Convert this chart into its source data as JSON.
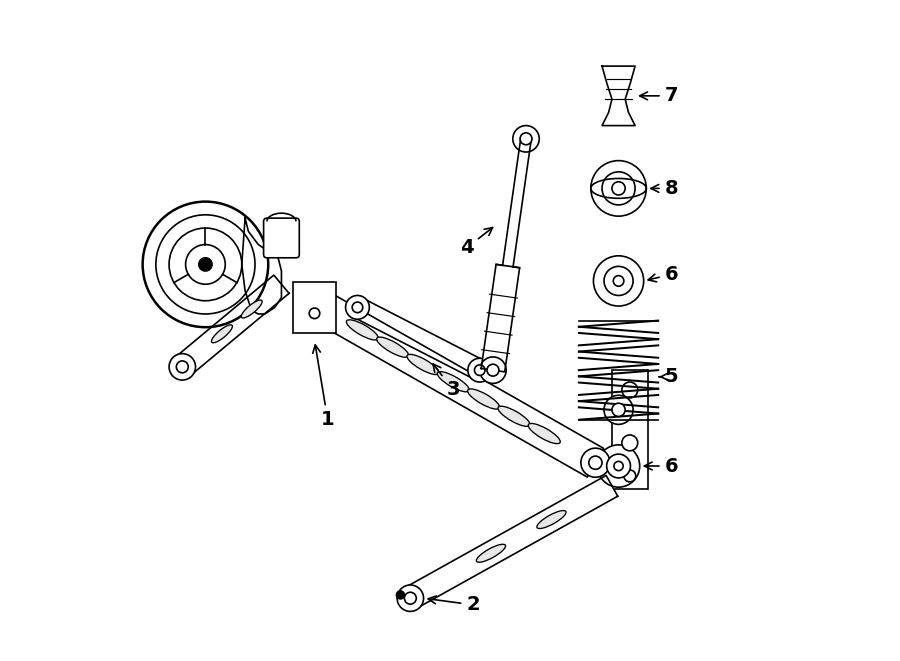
{
  "background_color": "#ffffff",
  "line_color": "#000000",
  "line_width": 1.2,
  "fig_width": 9.0,
  "fig_height": 6.61,
  "dpi": 100
}
